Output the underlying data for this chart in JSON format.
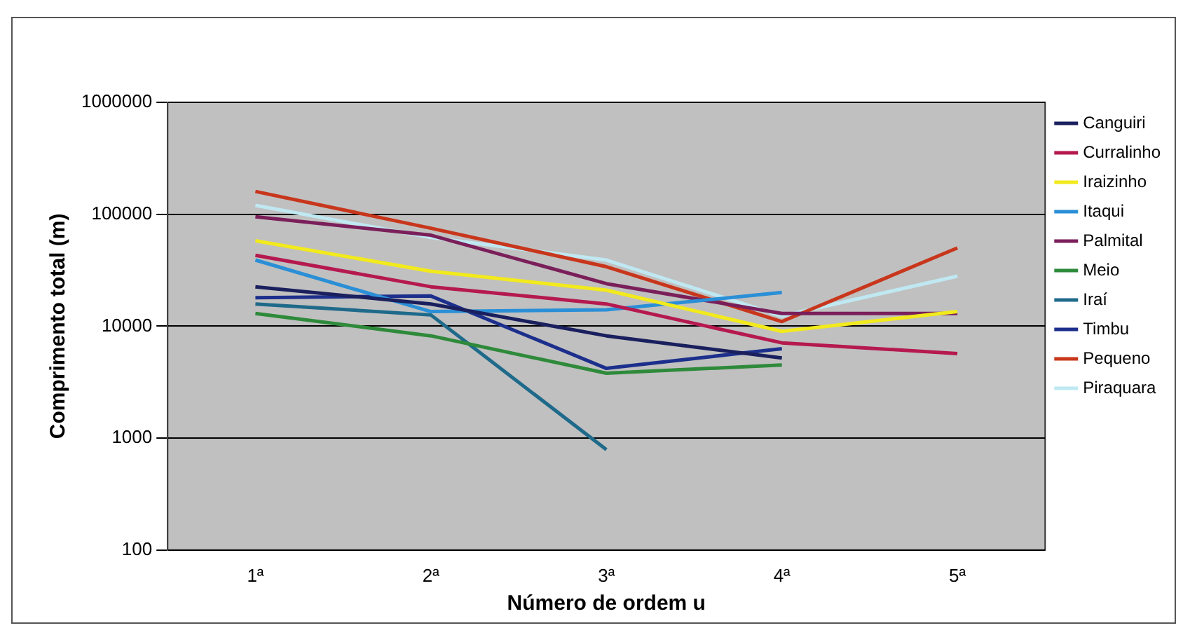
{
  "chart_data": {
    "type": "line",
    "xlabel": "Número de ordem u",
    "ylabel": "Comprimento total (m)",
    "categories": [
      "1ª",
      "2ª",
      "3ª",
      "4ª",
      "5ª"
    ],
    "log": "y",
    "ylim": [
      100,
      1000000
    ],
    "yticks": [
      100,
      1000,
      10000,
      100000,
      1000000
    ],
    "grid": "y",
    "legend": "right",
    "marker": "none",
    "line_style": "solid",
    "series": [
      {
        "name": "Canguiri",
        "color": "#1a1f5e",
        "values": [
          22500,
          15800,
          8200,
          5200,
          null
        ]
      },
      {
        "name": "Curralinho",
        "color": "#b5194f",
        "values": [
          43000,
          22500,
          15800,
          7100,
          5700
        ]
      },
      {
        "name": "Iraizinho",
        "color": "#f2ea1c",
        "values": [
          58000,
          31000,
          21000,
          9000,
          13500
        ]
      },
      {
        "name": "Itaqui",
        "color": "#2a8fd6",
        "values": [
          39000,
          13500,
          14000,
          20000,
          null
        ]
      },
      {
        "name": "Palmital",
        "color": "#7a1f5a",
        "values": [
          95000,
          65000,
          24000,
          13000,
          13000
        ]
      },
      {
        "name": "Meio",
        "color": "#2e8a3a",
        "values": [
          13000,
          8200,
          3800,
          4500,
          null
        ]
      },
      {
        "name": "Iraí",
        "color": "#1f6a8a",
        "values": [
          15800,
          12600,
          790,
          null,
          null
        ]
      },
      {
        "name": "Timbu",
        "color": "#1c2f8c",
        "values": [
          18000,
          18600,
          4200,
          6300,
          null
        ]
      },
      {
        "name": "Pequeno",
        "color": "#c8361c",
        "values": [
          160000,
          75000,
          34000,
          11000,
          50000
        ]
      },
      {
        "name": "Piraquara",
        "color": "#bfe8f2",
        "values": [
          120000,
          62000,
          39000,
          12300,
          28000
        ]
      }
    ]
  }
}
